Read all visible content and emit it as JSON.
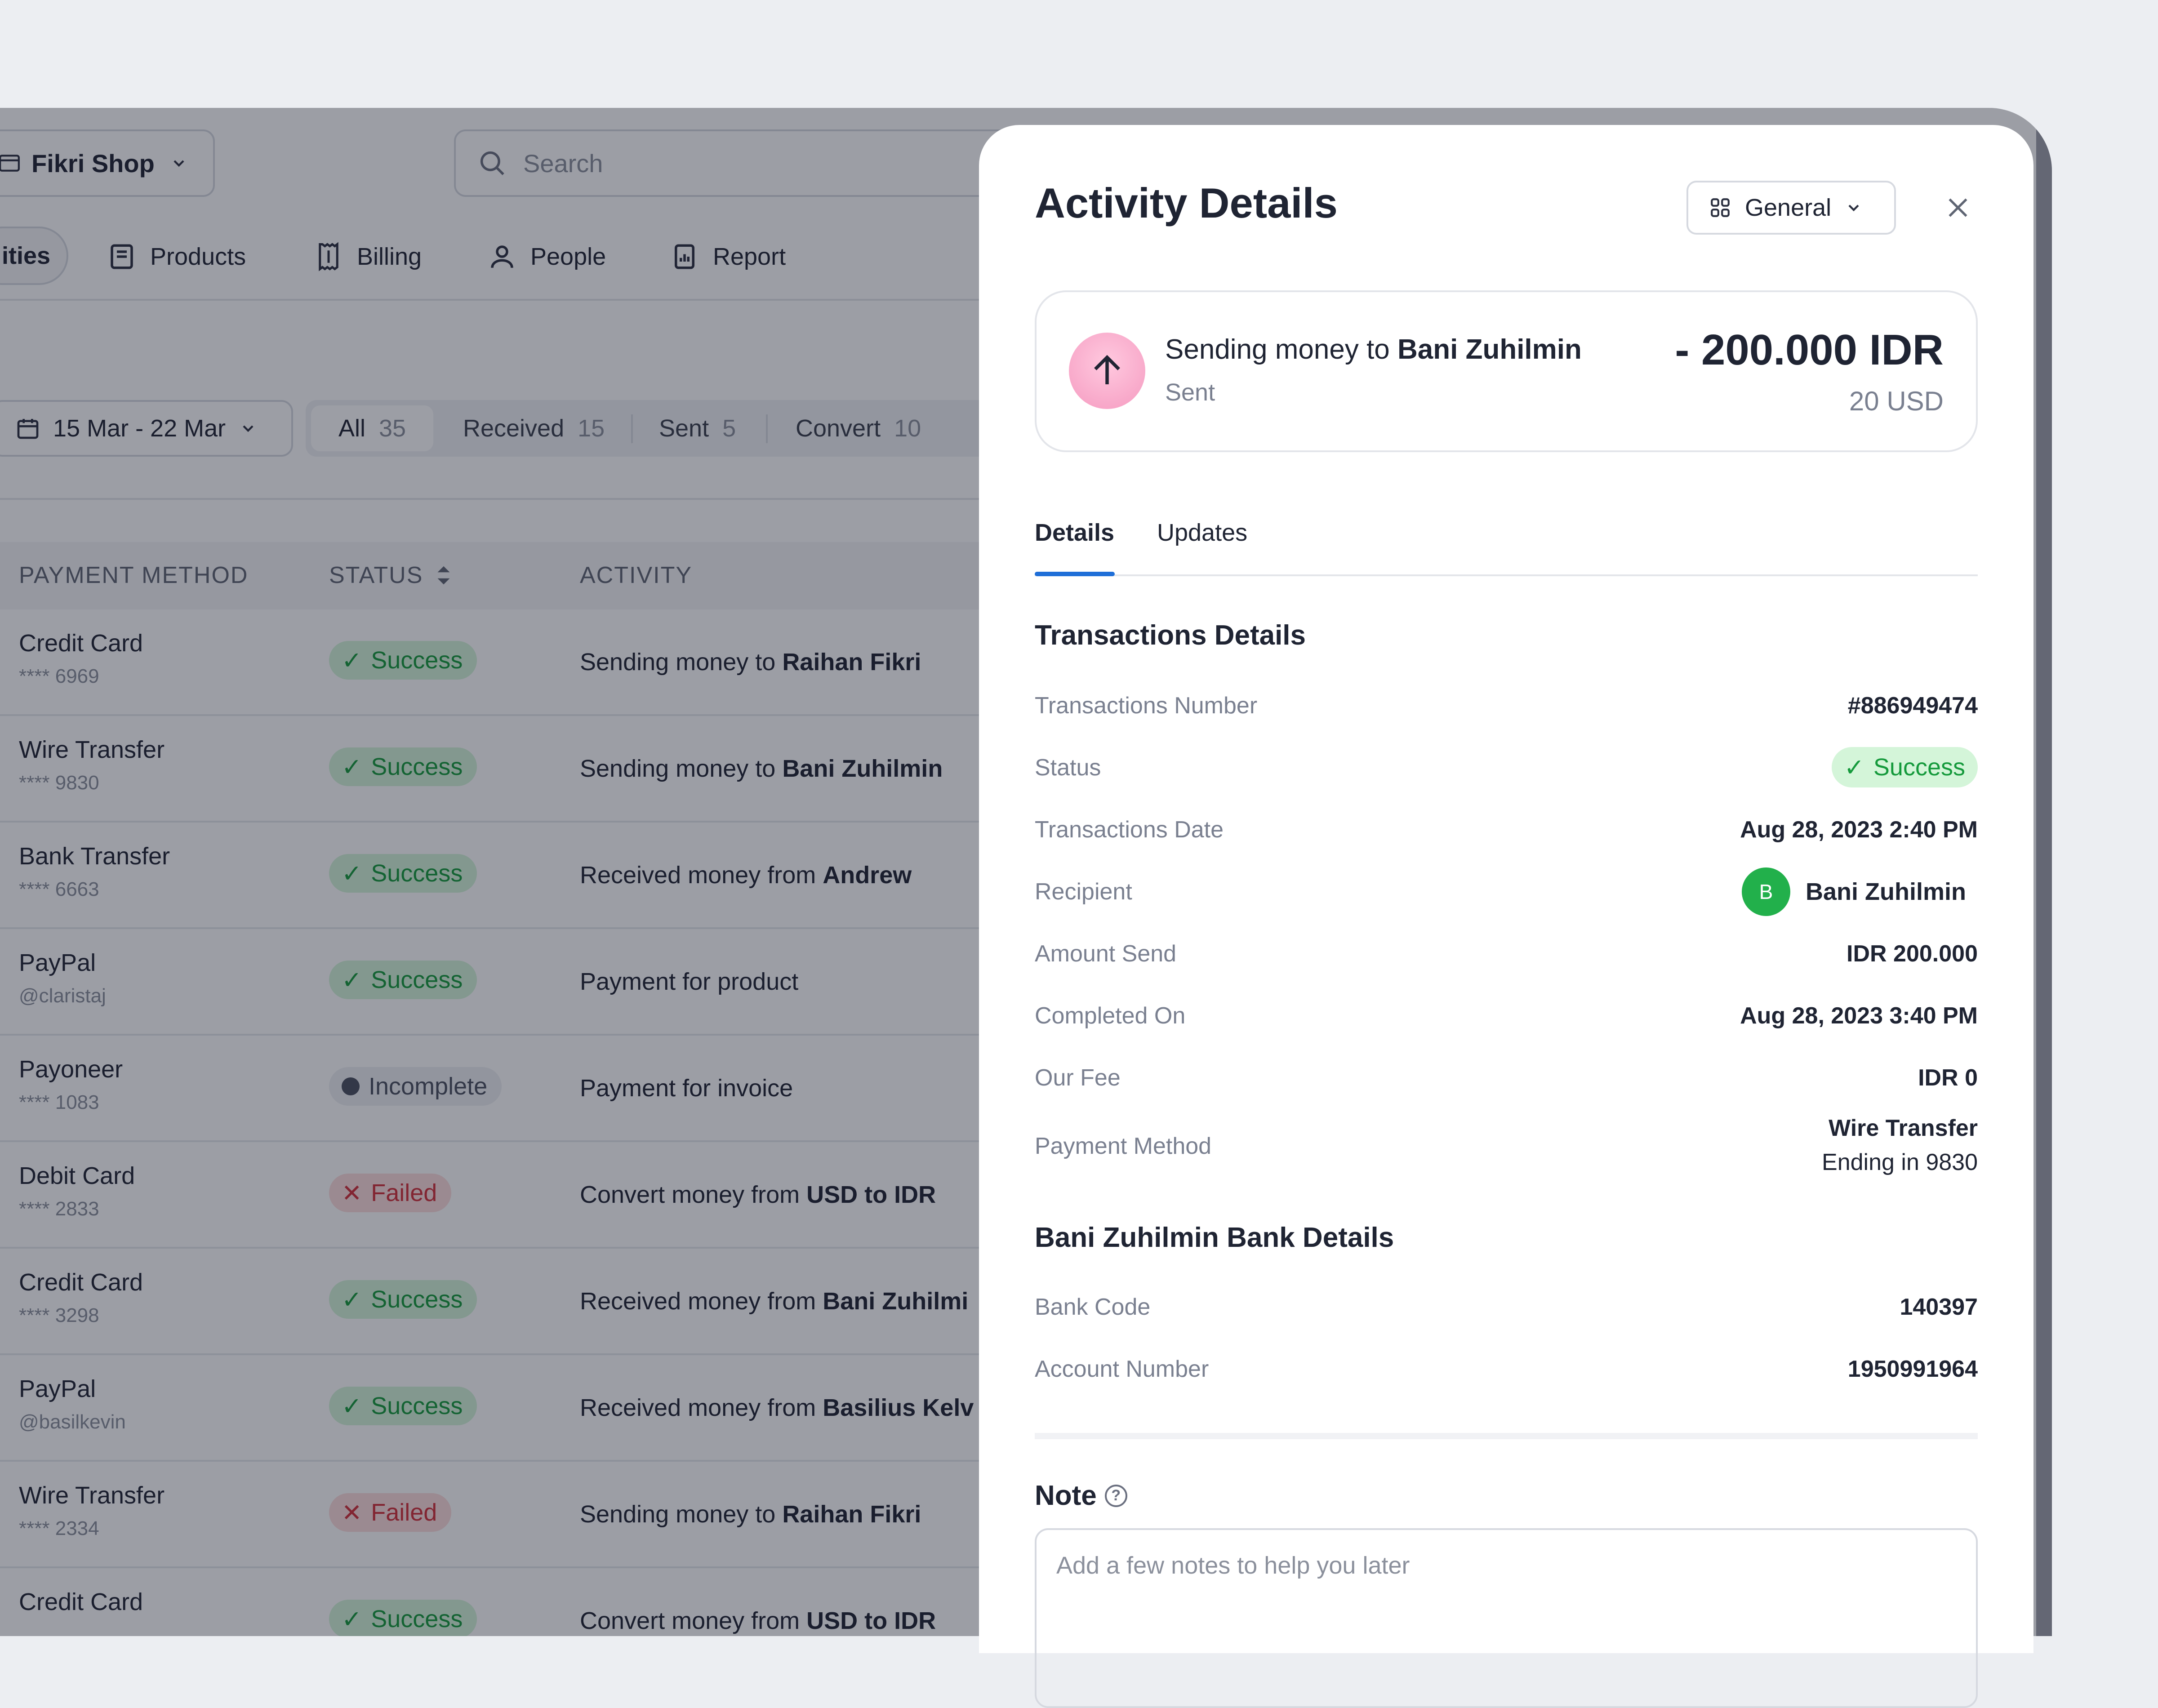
{
  "topbar": {
    "shop_name": "Fikri Shop",
    "search_placeholder": "Search"
  },
  "nav": {
    "items": [
      {
        "label": "ities"
      },
      {
        "label": "Products"
      },
      {
        "label": "Billing"
      },
      {
        "label": "People"
      },
      {
        "label": "Report"
      }
    ]
  },
  "filters": {
    "date_range": "15 Mar - 22 Mar",
    "segments": [
      {
        "label": "All",
        "count": "35"
      },
      {
        "label": "Received",
        "count": "15"
      },
      {
        "label": "Sent",
        "count": "5"
      },
      {
        "label": "Convert",
        "count": "10"
      }
    ]
  },
  "table": {
    "headers": [
      "PAYMENT METHOD",
      "STATUS",
      "ACTIVITY"
    ],
    "rows": [
      {
        "method": "Credit Card",
        "sub": "**** 6969",
        "status": "Success",
        "activity_pre": "Sending money to ",
        "activity_bold": "Raihan Fikri"
      },
      {
        "method": "Wire Transfer",
        "sub": "**** 9830",
        "status": "Success",
        "activity_pre": "Sending money to ",
        "activity_bold": "Bani Zuhilmin"
      },
      {
        "method": "Bank Transfer",
        "sub": "**** 6663",
        "status": "Success",
        "activity_pre": "Received money from ",
        "activity_bold": "Andrew"
      },
      {
        "method": "PayPal",
        "sub": "@claristaj",
        "status": "Success",
        "activity_pre": "Payment for product",
        "activity_bold": ""
      },
      {
        "method": "Payoneer",
        "sub": "**** 1083",
        "status": "Incomplete",
        "activity_pre": "Payment for invoice",
        "activity_bold": ""
      },
      {
        "method": "Debit Card",
        "sub": "**** 2833",
        "status": "Failed",
        "activity_pre": "Convert money  from ",
        "activity_bold": "USD to IDR"
      },
      {
        "method": "Credit Card",
        "sub": "**** 3298",
        "status": "Success",
        "activity_pre": "Received money from ",
        "activity_bold": "Bani Zuhilmi"
      },
      {
        "method": "PayPal",
        "sub": "@basilkevin",
        "status": "Success",
        "activity_pre": "Received money from ",
        "activity_bold": "Basilius Kelv"
      },
      {
        "method": "Wire Transfer",
        "sub": "**** 2334",
        "status": "Failed",
        "activity_pre": "Sending money to ",
        "activity_bold": "Raihan Fikri"
      },
      {
        "method": "Credit Card",
        "sub": "",
        "status": "Success",
        "activity_pre": "Convert money from ",
        "activity_bold": "USD to IDR"
      }
    ]
  },
  "modal": {
    "title": "Activity Details",
    "view_select": "General",
    "summary": {
      "text_pre": "Sending money to ",
      "recipient": "Bani Zuhilmin",
      "type": "Sent",
      "amount": "- 200.000 IDR",
      "amount_usd": "20 USD"
    },
    "tabs": [
      {
        "label": "Details",
        "active": true
      },
      {
        "label": "Updates",
        "active": false
      }
    ],
    "transactions": {
      "heading": "Transactions Details",
      "number_label": "Transactions Number",
      "number": "#886949474",
      "status_label": "Status",
      "status": "Success",
      "date_label": "Transactions Date",
      "date": "Aug 28, 2023 2:40 PM",
      "recipient_label": "Recipient",
      "recipient_initial": "B",
      "recipient": "Bani Zuhilmin",
      "amount_label": "Amount Send",
      "amount": "IDR 200.000",
      "completed_label": "Completed On",
      "completed": "Aug 28, 2023 3:40 PM",
      "fee_label": "Our Fee",
      "fee": "IDR 0",
      "method_label": "Payment Method",
      "method": "Wire Transfer",
      "method_sub": "Ending in 9830"
    },
    "bank": {
      "heading": "Bani Zuhilmin Bank Details",
      "code_label": "Bank Code",
      "code": "140397",
      "account_label": "Account Number",
      "account": "1950991964"
    },
    "note": {
      "heading": "Note",
      "placeholder": "Add a few notes to help you later"
    }
  },
  "colors": {
    "success": "#159a3c",
    "failed": "#d2303a",
    "accent": "#1f6fd8",
    "avatar": "#22b04b"
  }
}
